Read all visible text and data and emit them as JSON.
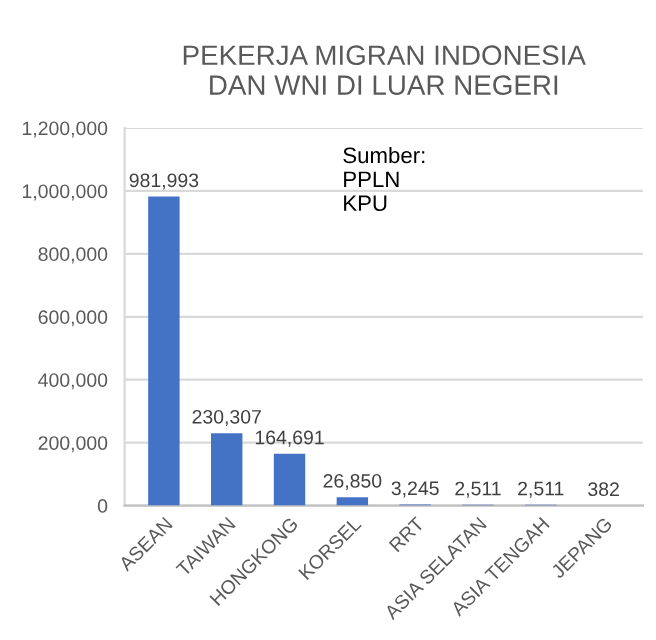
{
  "chart_data": {
    "type": "bar",
    "title": "PEKERJA MIGRAN INDONESIA\nDAN WNI DI LUAR NEGERI",
    "categories": [
      "ASEAN",
      "TAIWAN",
      "HONGKONG",
      "KORSEL",
      "RRT",
      "ASIA SELATAN",
      "ASIA TENGAH",
      "JEPANG"
    ],
    "values": [
      981993,
      230307,
      164691,
      26850,
      3245,
      2511,
      2511,
      382
    ],
    "color": "#4472c4",
    "ylim": [
      0,
      1200000
    ],
    "yticks": [
      0,
      {
        "value": 200000,
        "label": "200,000"
      },
      {
        "value": 400000,
        "label": "400,000"
      },
      {
        "value": 600000,
        "label": "600,000"
      },
      {
        "value": 800000,
        "label": "800,000"
      },
      {
        "value": 1000000,
        "label": "1,000,000"
      },
      {
        "value": 1200000,
        "label": "1,200,000"
      }
    ],
    "grid": "y",
    "value_labels": [
      "981,993",
      "230,307",
      "164,691",
      "26,850",
      "3,245",
      "2,511",
      "2,511",
      "382"
    ],
    "annotations": [
      "Sumber:\nPPLN\nKPU"
    ]
  }
}
